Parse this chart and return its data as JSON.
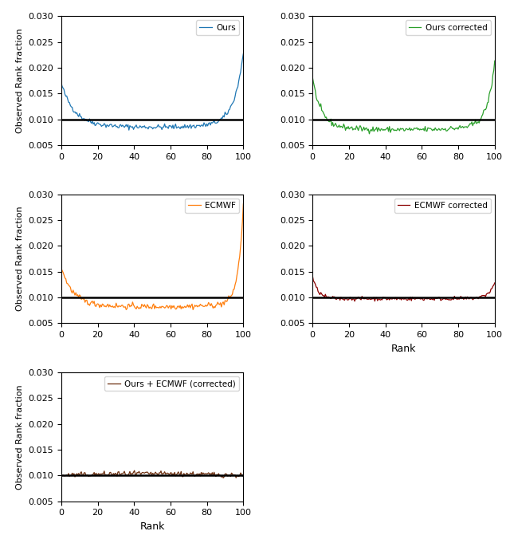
{
  "ylim": [
    0.005,
    0.03
  ],
  "xlim": [
    0,
    100
  ],
  "yticks": [
    0.005,
    0.01,
    0.015,
    0.02,
    0.025,
    0.03
  ],
  "xticks": [
    0,
    20,
    40,
    60,
    80,
    100
  ],
  "hline_y": 0.01,
  "ylabel": "Observed Rank fraction",
  "xlabel": "Rank",
  "colors": {
    "ours": "#1f77b4",
    "ours_corrected": "#2ca02c",
    "ecmwf": "#ff7f0e",
    "ecmwf_corrected": "#8b0000",
    "ours_ecmwf": "#6b2e0e"
  },
  "labels": {
    "ours": "Ours",
    "ours_corrected": "Ours corrected",
    "ecmwf": "ECMWF",
    "ecmwf_corrected": "ECMWF corrected",
    "ours_ecmwf": "Ours + ECMWF (corrected)"
  },
  "figsize": [
    6.4,
    6.76
  ],
  "dpi": 100
}
